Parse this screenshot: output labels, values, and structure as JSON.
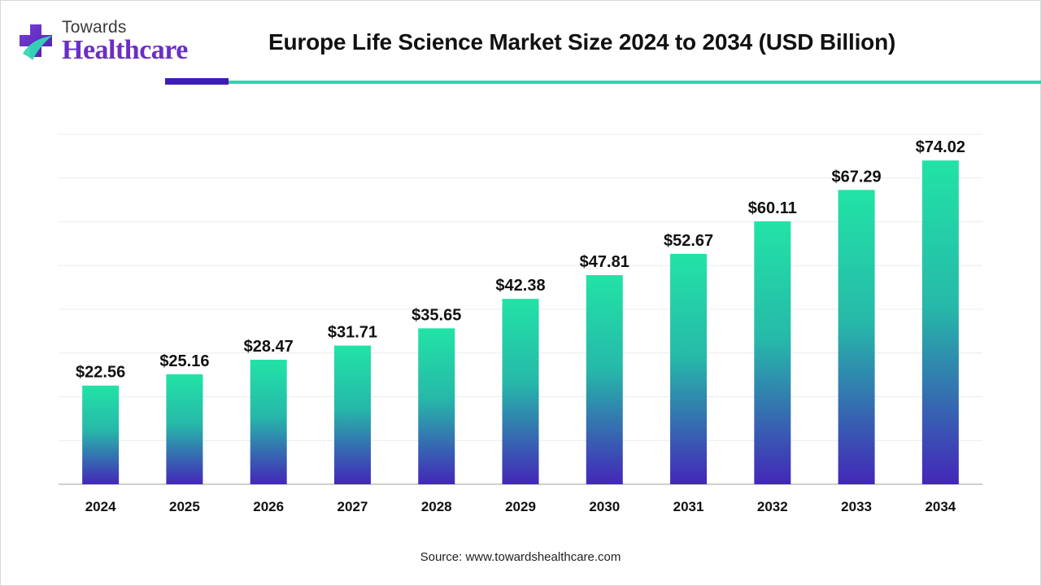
{
  "logo": {
    "top_text": "Towards",
    "bottom_text": "Healthcare"
  },
  "colors": {
    "bar_top": "#22e3a6",
    "bar_bottom": "#4327b8",
    "brand_purple": "#6a2fc4",
    "rule_dark": "#3d1eb5",
    "rule_light": "#2fd4b0"
  },
  "source": "Source: www.towardshealthcare.com",
  "chart_data": {
    "type": "bar",
    "title": "Europe Life Science Market Size 2024 to 2034 (USD Billion)",
    "categories": [
      "2024",
      "2025",
      "2026",
      "2027",
      "2028",
      "2029",
      "2030",
      "2031",
      "2032",
      "2033",
      "2034"
    ],
    "values": [
      22.56,
      25.16,
      28.47,
      31.71,
      35.65,
      42.38,
      47.81,
      52.67,
      60.11,
      67.29,
      74.02
    ],
    "value_labels": [
      "$22.56",
      "$25.16",
      "$28.47",
      "$31.71",
      "$35.65",
      "$42.38",
      "$47.81",
      "$52.67",
      "$60.11",
      "$67.29",
      "$74.02"
    ],
    "xlabel": "",
    "ylabel": "",
    "ylim": [
      0,
      80
    ],
    "grid": true,
    "legend": "none"
  }
}
